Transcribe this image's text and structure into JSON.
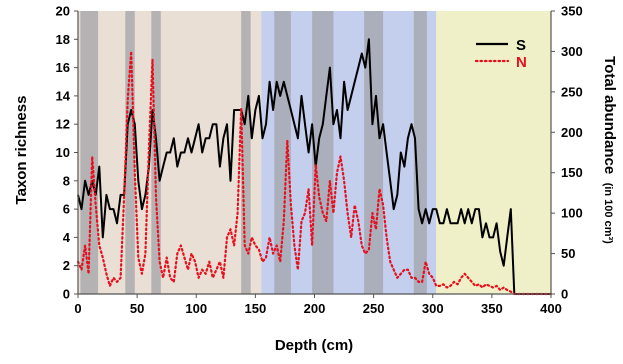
{
  "chart_data": {
    "type": "line",
    "xlabel": "Depth (cm)",
    "ylabel_left": "Taxon richness",
    "ylabel_right": "Total abundance",
    "ylabel_right_unit": "(in 100 cm³)",
    "xlim": [
      0,
      400
    ],
    "ylim_left": [
      0,
      20
    ],
    "ylim_right": [
      0,
      350
    ],
    "x_ticks": [
      "0",
      "50",
      "100",
      "150",
      "200",
      "250",
      "300",
      "350",
      "400"
    ],
    "y_ticks_left": [
      "0",
      "2",
      "4",
      "6",
      "8",
      "10",
      "12",
      "14",
      "16",
      "18",
      "20"
    ],
    "y_ticks_right": [
      "0",
      "50",
      "100",
      "150",
      "200",
      "250",
      "300",
      "350"
    ],
    "legend_position": "top-right",
    "zones": [
      {
        "x0": 0,
        "x1": 155,
        "color": "#eadfd4"
      },
      {
        "x0": 155,
        "x1": 303,
        "color": "#c4ceed"
      },
      {
        "x0": 303,
        "x1": 400,
        "color": "#eff0c7"
      }
    ],
    "dark_bands": [
      {
        "x0": 2,
        "x1": 17
      },
      {
        "x0": 40,
        "x1": 48
      },
      {
        "x0": 62,
        "x1": 70
      },
      {
        "x0": 138,
        "x1": 146
      },
      {
        "x0": 166,
        "x1": 180
      },
      {
        "x0": 198,
        "x1": 216
      },
      {
        "x0": 242,
        "x1": 258
      },
      {
        "x0": 284,
        "x1": 295
      }
    ],
    "band_color": "#a3a3a9",
    "series": [
      {
        "name": "S",
        "axis": "left",
        "color": "#000000",
        "style": "solid",
        "x": [
          0,
          3,
          6,
          9,
          12,
          15,
          18,
          21,
          24,
          27,
          30,
          33,
          36,
          39,
          42,
          45,
          48,
          51,
          54,
          57,
          60,
          63,
          66,
          69,
          72,
          75,
          78,
          81,
          84,
          87,
          90,
          93,
          96,
          99,
          102,
          105,
          108,
          111,
          114,
          117,
          120,
          123,
          126,
          129,
          132,
          135,
          138,
          141,
          144,
          147,
          150,
          153,
          156,
          159,
          162,
          165,
          168,
          171,
          174,
          177,
          180,
          183,
          186,
          189,
          192,
          195,
          198,
          201,
          204,
          207,
          210,
          213,
          216,
          219,
          222,
          225,
          228,
          231,
          234,
          237,
          240,
          243,
          246,
          249,
          252,
          255,
          258,
          261,
          264,
          267,
          270,
          273,
          276,
          279,
          282,
          285,
          288,
          291,
          294,
          297,
          300,
          303,
          306,
          309,
          312,
          315,
          318,
          321,
          324,
          327,
          330,
          333,
          336,
          339,
          342,
          345,
          348,
          351,
          354,
          357,
          360,
          363,
          366,
          369,
          372,
          375,
          378,
          381,
          384,
          387,
          390,
          393,
          396,
          400
        ],
        "values": [
          7,
          6,
          8,
          7,
          8,
          7,
          9,
          4,
          7,
          6,
          6,
          5,
          7,
          7,
          12,
          13,
          12,
          8,
          6,
          7,
          9,
          13,
          11,
          8,
          9,
          10,
          10,
          11,
          9,
          10,
          10,
          11,
          10,
          11,
          12,
          10,
          11,
          11,
          12,
          12,
          9,
          11,
          12,
          8,
          13,
          13,
          13,
          12,
          14,
          11,
          13,
          14,
          11,
          12,
          15,
          13,
          15,
          14,
          15,
          14,
          13,
          12,
          11,
          14,
          12,
          10,
          12,
          9,
          11,
          12,
          14,
          16,
          12,
          13,
          11,
          15,
          13,
          14,
          15,
          16,
          17,
          16,
          18,
          12,
          14,
          11,
          12,
          10,
          8,
          6,
          7,
          10,
          9,
          11,
          12,
          11,
          6,
          5,
          6,
          5,
          6,
          6,
          5,
          5,
          6,
          5,
          5,
          5,
          6,
          5,
          6,
          5,
          6,
          6,
          4,
          5,
          4,
          4,
          5,
          3,
          2,
          4,
          6,
          0,
          0,
          0,
          0,
          0,
          0,
          0,
          0,
          0,
          0,
          0
        ]
      },
      {
        "name": "N",
        "axis": "right",
        "color": "#e8101e",
        "style": "dotted",
        "x": [
          0,
          3,
          6,
          9,
          12,
          15,
          18,
          21,
          24,
          27,
          30,
          33,
          36,
          39,
          42,
          45,
          48,
          51,
          54,
          57,
          60,
          63,
          66,
          69,
          72,
          75,
          78,
          81,
          84,
          87,
          90,
          93,
          96,
          99,
          102,
          105,
          108,
          111,
          114,
          117,
          120,
          123,
          126,
          129,
          132,
          135,
          138,
          141,
          144,
          147,
          150,
          153,
          156,
          159,
          162,
          165,
          168,
          171,
          174,
          177,
          180,
          183,
          186,
          189,
          192,
          195,
          198,
          201,
          204,
          207,
          210,
          213,
          216,
          219,
          222,
          225,
          228,
          231,
          234,
          237,
          240,
          243,
          246,
          249,
          252,
          255,
          258,
          261,
          264,
          267,
          270,
          273,
          276,
          279,
          282,
          285,
          288,
          291,
          294,
          297,
          300,
          303,
          306,
          309,
          312,
          315,
          318,
          321,
          324,
          327,
          330,
          333,
          336,
          339,
          342,
          345,
          348,
          351,
          354,
          357,
          360,
          363,
          366,
          369,
          372,
          375,
          378,
          381,
          384,
          387,
          390,
          393,
          396,
          400
        ],
        "values": [
          40,
          30,
          60,
          25,
          170,
          110,
          60,
          45,
          25,
          10,
          20,
          15,
          20,
          120,
          240,
          300,
          150,
          45,
          25,
          50,
          180,
          290,
          120,
          40,
          20,
          45,
          20,
          15,
          50,
          60,
          45,
          30,
          50,
          40,
          20,
          30,
          25,
          40,
          20,
          30,
          40,
          20,
          70,
          80,
          60,
          100,
          230,
          60,
          50,
          70,
          60,
          55,
          40,
          45,
          70,
          50,
          60,
          40,
          90,
          190,
          110,
          60,
          30,
          90,
          100,
          130,
          60,
          160,
          120,
          100,
          90,
          140,
          100,
          150,
          170,
          140,
          100,
          70,
          110,
          90,
          60,
          50,
          55,
          100,
          80,
          130,
          110,
          70,
          40,
          30,
          20,
          25,
          30,
          30,
          20,
          20,
          15,
          15,
          40,
          25,
          20,
          10,
          10,
          12,
          8,
          10,
          15,
          12,
          20,
          25,
          20,
          15,
          10,
          12,
          8,
          12,
          10,
          8,
          10,
          5,
          8,
          5,
          3,
          0,
          0,
          0,
          0,
          0,
          0,
          0,
          0,
          0,
          0,
          0
        ]
      }
    ]
  }
}
